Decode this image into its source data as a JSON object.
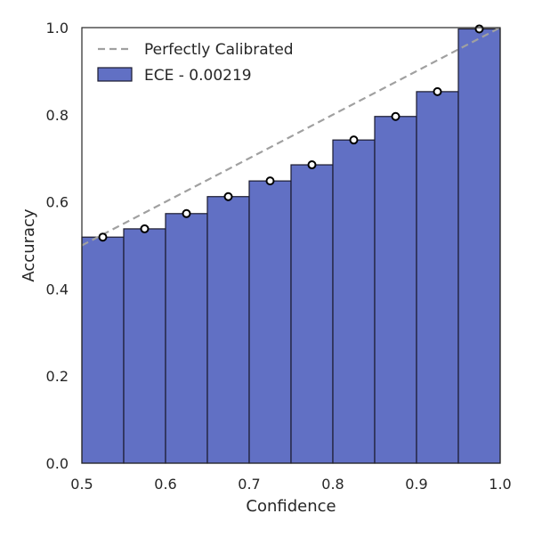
{
  "chart_data": {
    "type": "bar",
    "xlabel": "Confidence",
    "ylabel": "Accuracy",
    "xlim": [
      0.5,
      1.0
    ],
    "ylim": [
      0.0,
      1.0
    ],
    "x_ticks": [
      "0.5",
      "0.6",
      "0.7",
      "0.8",
      "0.9",
      "1.0"
    ],
    "y_ticks": [
      "0.0",
      "0.2",
      "0.4",
      "0.6",
      "0.8",
      "1.0"
    ],
    "grid": false,
    "legend_position": "top-left",
    "bin_edges": [
      0.5,
      0.55,
      0.6,
      0.65,
      0.7,
      0.75,
      0.8,
      0.85,
      0.9,
      0.95,
      1.0
    ],
    "series": [
      {
        "name": "ECE - 0.00219",
        "kind": "bar",
        "color": "#6170c4",
        "edge_color": "#1a1a2e",
        "values": [
          0.519,
          0.538,
          0.573,
          0.612,
          0.648,
          0.685,
          0.742,
          0.796,
          0.853,
          0.997
        ]
      },
      {
        "kind": "points",
        "x": [
          0.525,
          0.575,
          0.625,
          0.675,
          0.725,
          0.775,
          0.825,
          0.875,
          0.925,
          0.975
        ],
        "values": [
          0.519,
          0.538,
          0.573,
          0.612,
          0.648,
          0.685,
          0.742,
          0.796,
          0.853,
          0.997
        ]
      },
      {
        "name": "Perfectly Calibrated",
        "kind": "line",
        "style": "dashed",
        "color": "#a0a0a0",
        "x": [
          0.5,
          1.0
        ],
        "values": [
          0.5,
          1.0
        ]
      }
    ]
  }
}
